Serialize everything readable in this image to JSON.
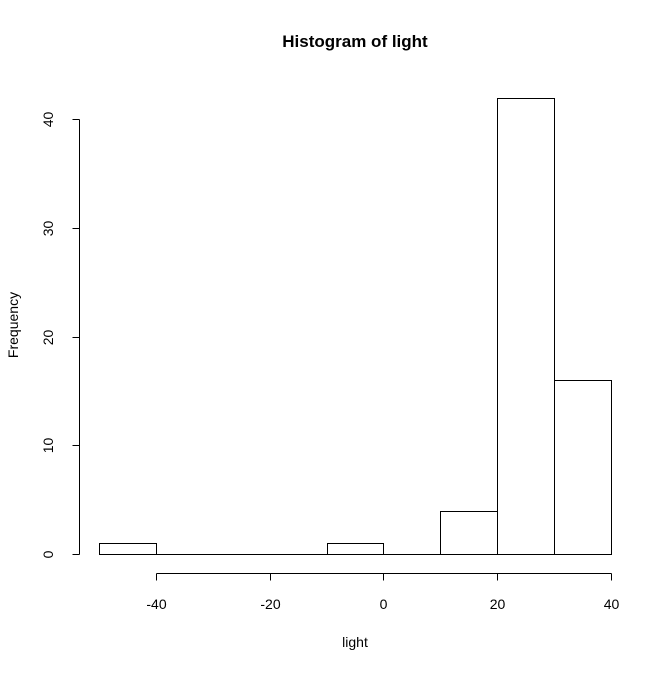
{
  "chart_data": {
    "type": "bar",
    "title": "Histogram of light",
    "xlabel": "light",
    "ylabel": "Frequency",
    "bins": [
      {
        "from": -50,
        "to": -40,
        "count": 1
      },
      {
        "from": -40,
        "to": -30,
        "count": 0
      },
      {
        "from": -30,
        "to": -20,
        "count": 0
      },
      {
        "from": -20,
        "to": -10,
        "count": 0
      },
      {
        "from": -10,
        "to": 0,
        "count": 1
      },
      {
        "from": 0,
        "to": 10,
        "count": 0
      },
      {
        "from": 10,
        "to": 20,
        "count": 4
      },
      {
        "from": 20,
        "to": 30,
        "count": 42
      },
      {
        "from": 30,
        "to": 40,
        "count": 16
      }
    ],
    "xticks": [
      -40,
      -20,
      0,
      20,
      40
    ],
    "yticks": [
      0,
      10,
      20,
      30,
      40
    ],
    "xlim": [
      -50,
      40
    ],
    "ylim": [
      0,
      42
    ],
    "grid": false,
    "bar_fill": "#ffffff",
    "bar_stroke": "#000000"
  }
}
